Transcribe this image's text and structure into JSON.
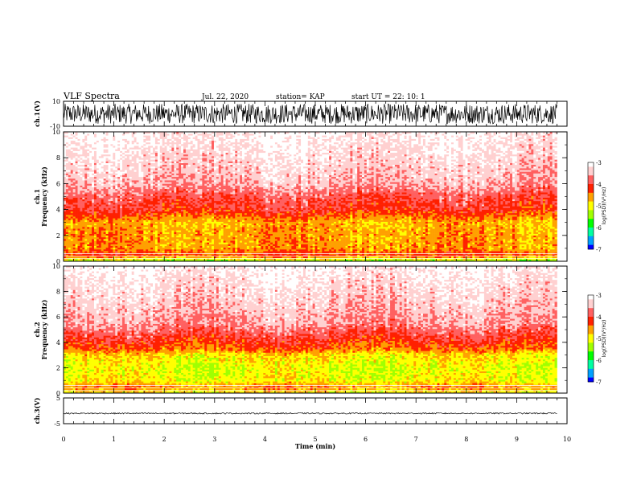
{
  "header": {
    "title": "VLF Spectra",
    "date": "Jul. 22, 2020",
    "station": "station= KAP",
    "start": "start UT =  22: 10: 1"
  },
  "colors": {
    "spectrum_scale": [
      "#0000ff",
      "#00a0ff",
      "#00ffa0",
      "#00ff00",
      "#a0ff00",
      "#ffff00",
      "#ffa000",
      "#ff2000",
      "#ff6060",
      "#ffd0d0",
      "#ffffff"
    ],
    "trace": "#000000"
  },
  "chart_data": [
    {
      "type": "line",
      "name": "ch1-waveform",
      "ylabel": "ch.1(V)",
      "ylim": [
        -10,
        10
      ],
      "yticks": [
        "10",
        "-10"
      ],
      "xlim": [
        0,
        10
      ],
      "data_end_min": 9.8,
      "description_of_values": "noisy waveform spanning most of the range"
    },
    {
      "type": "heatmap",
      "name": "ch1-spectrogram",
      "ylabel": "ch.1\nFrequency (kHz)",
      "ylim": [
        0,
        10
      ],
      "yticks": [
        "0",
        "2",
        "4",
        "6",
        "8",
        "10"
      ],
      "xlim": [
        0,
        10
      ],
      "data_end_min": 9.8,
      "band_profile_khz": [
        {
          "f": 0.0,
          "level": -5.5
        },
        {
          "f": 0.5,
          "level": -4.2
        },
        {
          "f": 1.0,
          "level": -4.6
        },
        {
          "f": 2.0,
          "level": -4.6
        },
        {
          "f": 3.0,
          "level": -4.7
        },
        {
          "f": 4.0,
          "level": -4.1
        },
        {
          "f": 5.0,
          "level": -3.9
        },
        {
          "f": 6.0,
          "level": -3.5
        },
        {
          "f": 10.0,
          "level": -3.1
        }
      ],
      "colorbar": {
        "label": "log(PSD)(V²/Hz)",
        "range": [
          -7,
          -3
        ],
        "ticks": [
          "-3",
          "-4",
          "-5",
          "-6",
          "-7"
        ]
      }
    },
    {
      "type": "heatmap",
      "name": "ch2-spectrogram",
      "ylabel": "ch.2\nFrequency (kHz)",
      "ylim": [
        0,
        10
      ],
      "yticks": [
        "0",
        "2",
        "4",
        "6",
        "8",
        "10"
      ],
      "xlim": [
        0,
        10
      ],
      "data_end_min": 9.8,
      "band_profile_khz": [
        {
          "f": 0.0,
          "level": -5.0
        },
        {
          "f": 0.5,
          "level": -4.5
        },
        {
          "f": 1.0,
          "level": -5.0
        },
        {
          "f": 2.0,
          "level": -5.1
        },
        {
          "f": 3.0,
          "level": -4.9
        },
        {
          "f": 3.5,
          "level": -4.4
        },
        {
          "f": 4.5,
          "level": -4.0
        },
        {
          "f": 5.5,
          "level": -3.6
        },
        {
          "f": 10.0,
          "level": -3.1
        }
      ],
      "colorbar": {
        "label": "log(PSD)(V²/Hz)",
        "range": [
          -7,
          -3
        ],
        "ticks": [
          "-3",
          "-4",
          "-5",
          "-6",
          "-7"
        ]
      }
    },
    {
      "type": "line",
      "name": "ch3-waveform",
      "ylabel": "ch.3(V)",
      "ylim": [
        -5,
        5
      ],
      "yticks": [
        "5",
        "-5"
      ],
      "xlim": [
        0,
        10
      ],
      "data_end_min": 9.8,
      "description_of_values": "thin dense band near -1 V"
    }
  ],
  "xaxis": {
    "label": "Time (min)",
    "ticks": [
      "0",
      "1",
      "2",
      "3",
      "4",
      "5",
      "6",
      "7",
      "8",
      "9",
      "10"
    ]
  }
}
